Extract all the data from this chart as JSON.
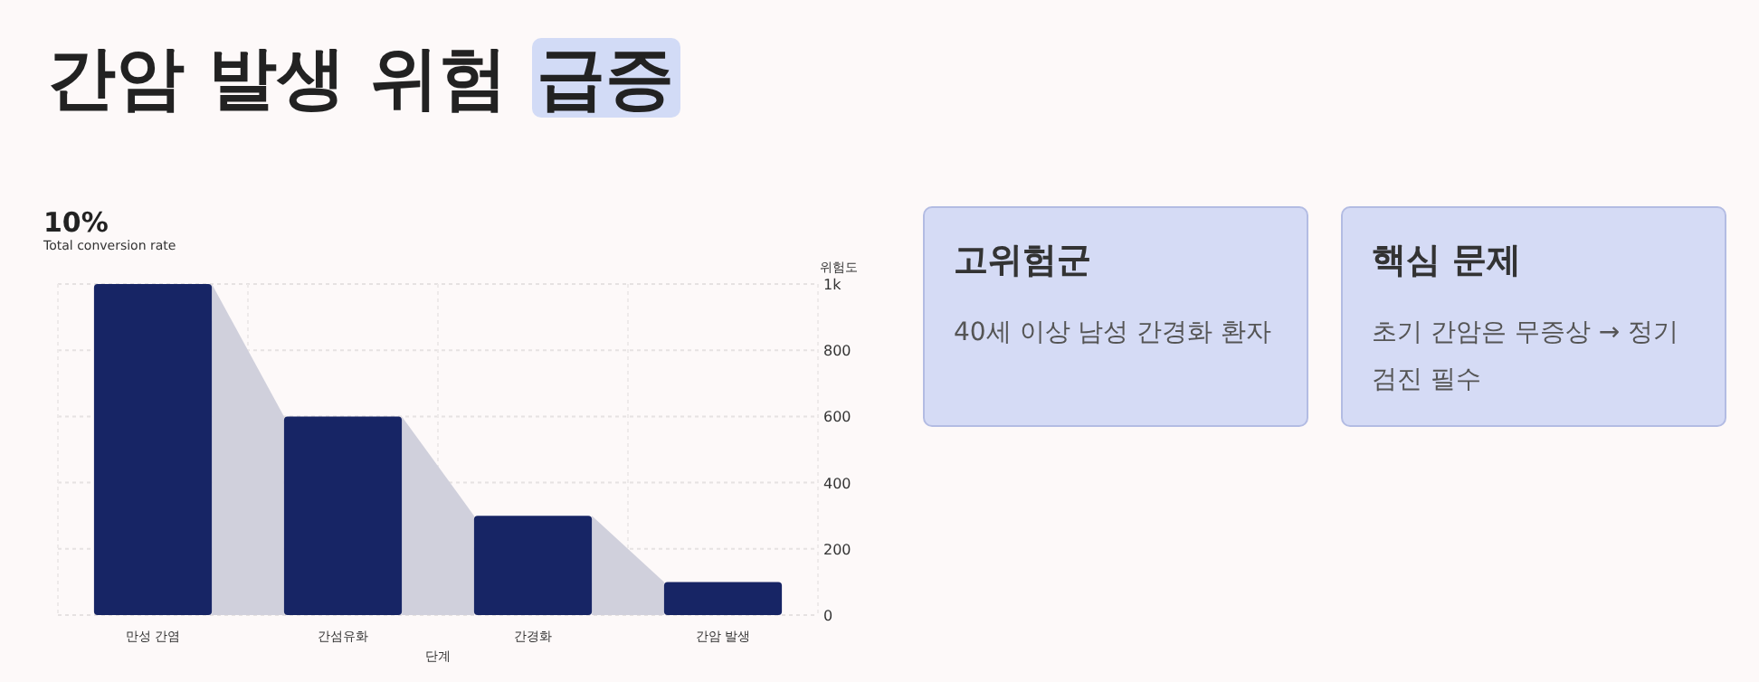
{
  "chart_data": [
    {
      "type": "bar",
      "title": "간암 발생 위험 급증",
      "annotations": [
        "10%",
        "Total conversion rate"
      ],
      "xlabel": "단계",
      "ylabel": "위험도",
      "categories": [
        "만성 간염",
        "간섬유화",
        "간경화",
        "간암 발생"
      ],
      "series": [
        {
          "color": "#172565",
          "values": [
            1000,
            600,
            300,
            100
          ]
        }
      ],
      "ylim": [
        0,
        1000
      ],
      "yticks": [
        0,
        200,
        400,
        600,
        800,
        {
          "value": 1000,
          "label": "1k"
        }
      ],
      "grid": true
    },
    {
      "type": "other",
      "title": "고위험군",
      "annotations": [
        "40세 이상 남성 간경화 환자"
      ]
    },
    {
      "type": "other",
      "title": "핵심 문제",
      "annotations": [
        "초기 간암은 무증상 → 정기 검진 필수"
      ]
    }
  ]
}
